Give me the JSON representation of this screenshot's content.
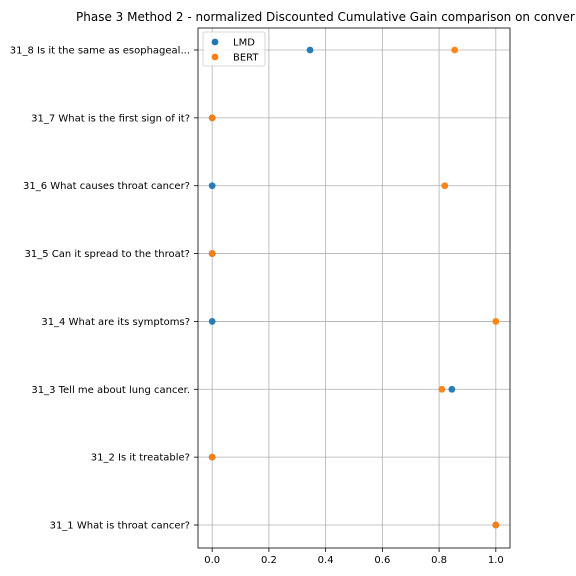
{
  "chart_data": {
    "type": "scatter",
    "title": "Phase 3 Method 2 - normalized Discounted Cumulative Gain comparison on conver",
    "xlabel": "",
    "ylabel": "",
    "xlim": [
      -0.05,
      1.05
    ],
    "x_ticks": [
      "0.0",
      "0.2",
      "0.4",
      "0.6",
      "0.8",
      "1.0"
    ],
    "categories": [
      "31_1 What is throat cancer?",
      "31_2 Is it treatable?",
      "31_3 Tell me about lung cancer.",
      "31_4 What are its symptoms?",
      "31_5 Can it spread to the throat?",
      "31_6 What causes throat cancer?",
      "31_7 What is the first sign of it?",
      "31_8 Is it the same as esophageal..."
    ],
    "series": [
      {
        "name": "LMD",
        "color": "#1f77b4",
        "values": [
          1.0,
          0.0,
          0.845,
          0.0,
          0.0,
          0.0,
          0.0,
          0.345
        ]
      },
      {
        "name": "BERT",
        "color": "#ff7f0e",
        "values": [
          1.0,
          0.0,
          0.81,
          1.0,
          0.0,
          0.82,
          0.0,
          0.855
        ]
      }
    ],
    "grid": true,
    "legend": "top-left"
  }
}
